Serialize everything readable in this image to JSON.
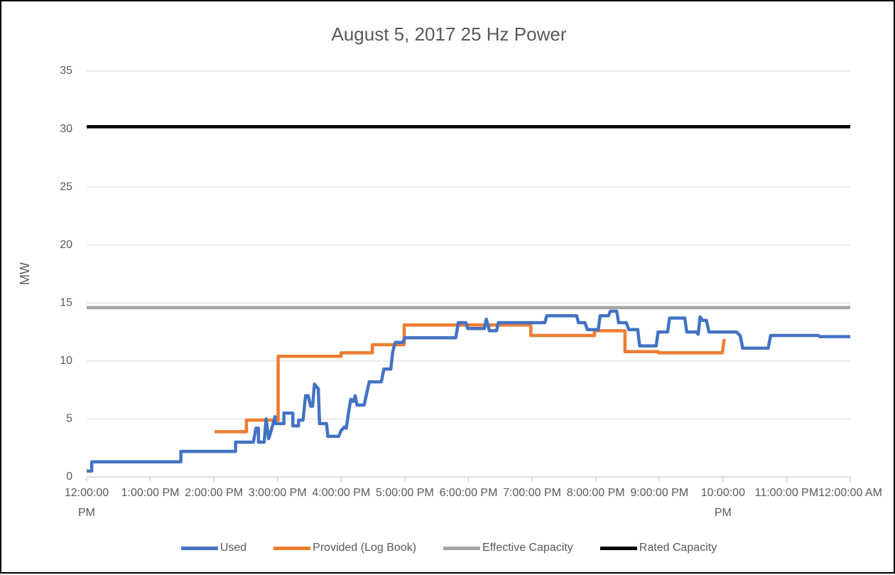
{
  "chart_data": {
    "type": "line",
    "title": "August 5, 2017 25 Hz Power",
    "y_label": "MW",
    "xlim": [
      12,
      24
    ],
    "xticks": [
      {
        "value": 12,
        "label": "12:00:00 PM"
      },
      {
        "value": 13,
        "label": "1:00:00 PM"
      },
      {
        "value": 14,
        "label": "2:00:00 PM"
      },
      {
        "value": 15,
        "label": "3:00:00 PM"
      },
      {
        "value": 16,
        "label": "4:00:00 PM"
      },
      {
        "value": 17,
        "label": "5:00:00 PM"
      },
      {
        "value": 18,
        "label": "6:00:00 PM"
      },
      {
        "value": 19,
        "label": "7:00:00 PM"
      },
      {
        "value": 20,
        "label": "8:00:00 PM"
      },
      {
        "value": 21,
        "label": "9:00:00 PM"
      },
      {
        "value": 22,
        "label": "10:00:00 PM"
      },
      {
        "value": 23,
        "label": "11:00:00 PM"
      },
      {
        "value": 24,
        "label": "12:00:00 AM"
      }
    ],
    "ylim": [
      0,
      35
    ],
    "yticks": [
      0,
      5,
      10,
      15,
      20,
      25,
      30,
      35
    ],
    "grid": true,
    "legend": "bottom",
    "series": [
      {
        "name": "Used",
        "color": "#4472c4",
        "x": [
          12,
          12.08,
          12.08,
          13.48,
          13.48,
          14.34,
          14.34,
          14.62,
          14.66,
          14.7,
          14.7,
          14.79,
          14.82,
          14.86,
          14.9,
          14.96,
          14.96,
          15.1,
          15.1,
          15.24,
          15.24,
          15.33,
          15.33,
          15.4,
          15.44,
          15.48,
          15.52,
          15.55,
          15.58,
          15.64,
          15.66,
          15.77,
          15.79,
          15.96,
          16.0,
          16.05,
          16.08,
          16.12,
          16.15,
          16.19,
          16.22,
          16.25,
          16.36,
          16.4,
          16.44,
          16.63,
          16.67,
          16.78,
          16.81,
          16.85,
          16.97,
          17.0,
          17.8,
          17.84,
          17.96,
          17.99,
          18.25,
          18.28,
          18.33,
          18.44,
          18.47,
          19.2,
          19.23,
          19.7,
          19.73,
          19.83,
          19.87,
          20.04,
          20.07,
          20.2,
          20.23,
          20.33,
          20.36,
          20.48,
          20.52,
          20.66,
          20.69,
          20.95,
          20.98,
          21.13,
          21.16,
          21.4,
          21.43,
          21.58,
          21.61,
          21.64,
          21.68,
          21.74,
          21.78,
          22.21,
          22.27,
          22.31,
          22.71,
          22.75,
          23.5,
          23.52,
          24.0
        ],
        "values": [
          0.5,
          0.5,
          1.3,
          1.3,
          2.2,
          2.2,
          3.0,
          3.0,
          4.2,
          4.2,
          3.0,
          3.0,
          5.0,
          3.3,
          4.0,
          5.2,
          4.6,
          4.6,
          5.5,
          5.5,
          4.4,
          4.4,
          4.9,
          4.9,
          7.0,
          7.0,
          6.1,
          6.1,
          8.0,
          7.6,
          4.6,
          4.6,
          3.5,
          3.5,
          4.0,
          4.3,
          4.2,
          5.7,
          6.7,
          6.5,
          7.0,
          6.2,
          6.2,
          7.2,
          8.2,
          8.2,
          9.3,
          9.3,
          10.8,
          11.6,
          11.6,
          12.0,
          12.0,
          13.3,
          13.3,
          12.8,
          12.8,
          13.6,
          12.6,
          12.6,
          13.3,
          13.3,
          13.9,
          13.9,
          13.3,
          13.3,
          12.7,
          12.7,
          13.9,
          13.9,
          14.3,
          14.3,
          13.3,
          13.3,
          12.7,
          12.7,
          11.3,
          11.3,
          12.5,
          12.5,
          13.7,
          13.7,
          12.5,
          12.5,
          12.3,
          13.8,
          13.5,
          13.5,
          12.5,
          12.5,
          12.2,
          11.1,
          11.1,
          12.2,
          12.2,
          12.1,
          12.1
        ]
      },
      {
        "name": "Provided (Log Book)",
        "color": "#ed7d31",
        "x": [
          14.01,
          14.51,
          14.51,
          15.01,
          15.01,
          16.0,
          16.0,
          16.49,
          16.49,
          16.99,
          16.99,
          18.98,
          18.98,
          19.98,
          19.98,
          20.46,
          20.46,
          20.98,
          20.98,
          21.99,
          22.02
        ],
        "values": [
          3.9,
          3.9,
          4.9,
          4.9,
          10.4,
          10.4,
          10.7,
          10.7,
          11.4,
          11.4,
          13.1,
          13.1,
          12.2,
          12.2,
          12.6,
          12.6,
          10.8,
          10.8,
          10.7,
          10.7,
          11.9
        ]
      },
      {
        "name": "Effective Capacity",
        "color": "#a5a5a5",
        "x": [
          12,
          24
        ],
        "values": [
          14.6,
          14.6
        ]
      },
      {
        "name": "Rated Capacity",
        "color": "#000000",
        "x": [
          12,
          24
        ],
        "values": [
          30.2,
          30.2
        ]
      }
    ]
  }
}
